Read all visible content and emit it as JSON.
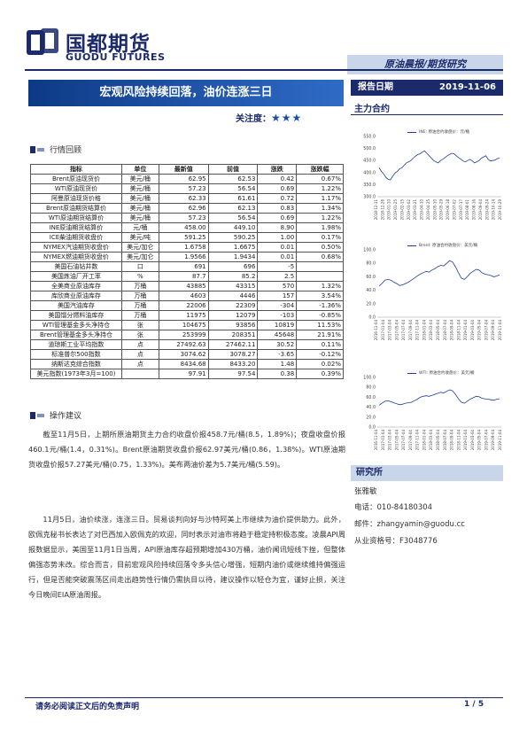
{
  "header": {
    "logo_cn": "国都期货",
    "logo_en": "GUODU FUTURES",
    "category": "原油晨报/期货研究",
    "title": "宏观风险持续回落，油价连涨三日",
    "attention_label": "关注度：",
    "attention_stars": "★★★",
    "report_date_label": "报告日期",
    "report_date": "2019-11-06",
    "main_contract_label": "主力合约"
  },
  "market": {
    "section_title": "行情回顾",
    "columns": [
      "指标",
      "单位",
      "最新值",
      "前值",
      "涨跌",
      "涨跌幅"
    ],
    "rows": [
      [
        "Brent原油现货价",
        "美元/桶",
        "62.95",
        "62.53",
        "0.42",
        "0.67%"
      ],
      [
        "WTI原油现货价",
        "美元/桶",
        "57.23",
        "56.54",
        "0.69",
        "1.22%"
      ],
      [
        "阿曼原油现货价格",
        "美元/桶",
        "62.33",
        "61.61",
        "0.72",
        "1.17%"
      ],
      [
        "Brent原油期货结算价",
        "美元/桶",
        "62.96",
        "62.13",
        "0.83",
        "1.34%"
      ],
      [
        "WTI原油期货结算价",
        "美元/桶",
        "57.23",
        "56.54",
        "0.69",
        "1.22%"
      ],
      [
        "INE原油期货结算价",
        "元/桶",
        "458.00",
        "449.10",
        "8.90",
        "1.98%"
      ],
      [
        "ICE柴油期货收盘价",
        "美元/吨",
        "591.25",
        "590.25",
        "1.00",
        "0.17%"
      ],
      [
        "NYMEX汽油期货收盘价",
        "美元/加仑",
        "1.6758",
        "1.6675",
        "0.01",
        "0.50%"
      ],
      [
        "NYMEX燃油期货收盘价",
        "美元/加仑",
        "1.9566",
        "1.9434",
        "0.01",
        "0.68%"
      ],
      [
        "美国石油钻井数",
        "口",
        "691",
        "696",
        "-5",
        ""
      ],
      [
        "美国炼油厂开工率",
        "%",
        "87.7",
        "85.2",
        "2.5",
        ""
      ],
      [
        "全美商业原油库存",
        "万桶",
        "43885",
        "43315",
        "570",
        "1.32%"
      ],
      [
        "库欣商业原油库存",
        "万桶",
        "4603",
        "4446",
        "157",
        "3.54%"
      ],
      [
        "美国汽油库存",
        "万桶",
        "22006",
        "22309",
        "-304",
        "-1.36%"
      ],
      [
        "美国馏分燃料油库存",
        "万桶",
        "11975",
        "12079",
        "-103",
        "-0.85%"
      ],
      [
        "WTI管理基金多头净持仓",
        "张",
        "104675",
        "93856",
        "10819",
        "11.53%"
      ],
      [
        "Brent管理基金多头净持仓",
        "张",
        "253999",
        "208351",
        "45648",
        "21.91%"
      ],
      [
        "道琼斯工业平均指数",
        "点",
        "27492.63",
        "27462.11",
        "30.52",
        "0.11%"
      ],
      [
        "标准普尔500指数",
        "点",
        "3074.62",
        "3078.27",
        "-3.65",
        "-0.12%"
      ],
      [
        "纳斯达克综合指数",
        "点",
        "8434.68",
        "8433.20",
        "1.48",
        "0.02%"
      ],
      [
        "美元指数(1973年3月=100)",
        "",
        "97.91",
        "97.54",
        "0.38",
        "0.39%"
      ]
    ]
  },
  "advice": {
    "section_title": "操作建议",
    "p1": "截至11月5日，上期所原油期货主力合约收盘价报458.7元/桶(8.5，1.89%)；夜盘收盘价报460.1元/桶(1.4，0.31%)。Brent原油期货收盘价报62.97美元/桶(0.86，1.38%)。WTI原油期货收盘价报57.27美元/桶(0.75，1.33%)。美布两油价差为5.7美元/桶(5.59)。",
    "p2": "11月5日，油价续涨，连涨三日。贸易谈判向好与沙特阿美上市继续为油价提供助力。此外，欧佩克秘书长表达了对巴西加入欧佩克的欢迎，同时表示对油市将趋于稳定持积极态度。凌晨API周报数据显示，美国至11月1日当周，API原油库存超预期增加430万桶，油价闻讯短线下挫，但整体偏强态势未改。综合而言，目前宏观风险持续回落令多头信心增强，短期内油价或继续维持偏强运行，但是否能突破震荡区间走出趋势性行情仍需执目以待，建议操作以轻仓为宜，谨好止损，关注今日晚间EIA原油周报。"
  },
  "charts": {
    "c1_legend": "INE: 原油合约收盘价：元/桶",
    "c2_legend": "Brent: 原油合约收盘价：美元/桶",
    "c3_legend": "WTI: 原油合约收盘价：美元/桶"
  },
  "chart_data": [
    {
      "type": "line",
      "ylim": [
        300,
        550
      ],
      "yticks": [
        "550.0",
        "500.0",
        "450.0",
        "400.0",
        "350.0",
        "300.0"
      ],
      "xticks": [
        "2018-12-11",
        "2018-12-26",
        "2019-01-10",
        "2019-01-25",
        "2019-02-15",
        "2019-03-02",
        "2019-03-21",
        "2019-04-10",
        "2019-04-25",
        "2019-05-10",
        "2019-05-29",
        "2019-06-18",
        "2019-07-02",
        "2019-07-17",
        "2019-08-01",
        "2019-08-16",
        "2019-09-04",
        "2019-09-24",
        "2019-10-14",
        "2019-10-29"
      ],
      "values": [
        420,
        405,
        395,
        380,
        372,
        370,
        385,
        398,
        405,
        415,
        420,
        430,
        440,
        445,
        450,
        460,
        468,
        475,
        478,
        485,
        490,
        480,
        470,
        460,
        450,
        445,
        440,
        450,
        455,
        462,
        470,
        475,
        480,
        478,
        470,
        462,
        455,
        448,
        445,
        450,
        455,
        448,
        440,
        445,
        450,
        460,
        465,
        470,
        455,
        448,
        450,
        452,
        458,
        460
      ]
    },
    {
      "type": "line",
      "ylim": [
        0,
        100
      ],
      "yticks": [
        "100.0",
        "80.0",
        "60.0",
        "40.0",
        "20.0",
        "0.0"
      ],
      "xticks": [
        "2016-11-04",
        "2017-01-04",
        "2017-03-04",
        "2017-05-04",
        "2017-07-04",
        "2017-09-04",
        "2017-11-04",
        "2018-01-04",
        "2018-03-04",
        "2018-05-04",
        "2018-07-04",
        "2018-09-04",
        "2018-11-04",
        "2019-01-04",
        "2019-03-04",
        "2019-05-04",
        "2019-07-04",
        "2019-09-04",
        "2019-11-04"
      ],
      "values": [
        46,
        50,
        55,
        56,
        55,
        52,
        50,
        47,
        48,
        50,
        52,
        55,
        58,
        61,
        64,
        66,
        68,
        67,
        70,
        72,
        75,
        77,
        76,
        80,
        84,
        82,
        75,
        66,
        58,
        56,
        60,
        65,
        68,
        71,
        70,
        66,
        64,
        63,
        62,
        60,
        61,
        63
      ]
    },
    {
      "type": "line",
      "ylim": [
        0,
        100
      ],
      "yticks": [
        "100.0",
        "80.0",
        "60.0",
        "40.0",
        "20.0",
        "0.0"
      ],
      "xticks": [
        "2016-11-04",
        "2017-01-04",
        "2017-03-04",
        "2017-05-04",
        "2017-07-04",
        "2017-09-04",
        "2017-11-04",
        "2018-01-04",
        "2018-03-04",
        "2018-05-04",
        "2018-07-04",
        "2018-09-04",
        "2018-11-04",
        "2019-01-04",
        "2019-03-04",
        "2019-05-04",
        "2019-07-04",
        "2019-09-04",
        "2019-11-04"
      ],
      "values": [
        44,
        48,
        52,
        53,
        51,
        49,
        47,
        45,
        46,
        48,
        49,
        50,
        53,
        56,
        60,
        62,
        63,
        62,
        64,
        66,
        68,
        70,
        69,
        72,
        75,
        73,
        66,
        57,
        50,
        48,
        52,
        56,
        59,
        62,
        61,
        58,
        57,
        56,
        55,
        54,
        56,
        57
      ]
    }
  ],
  "research": {
    "title": "研究所",
    "name": "张雅敏",
    "phone": "电话：010-84180304",
    "email": "邮件：zhangyamin@guodu.cc",
    "license": "从业资格号：F3048776"
  },
  "footer": {
    "disclaimer": "请务必阅读正文后的免责声明",
    "page": "1 / 5"
  }
}
